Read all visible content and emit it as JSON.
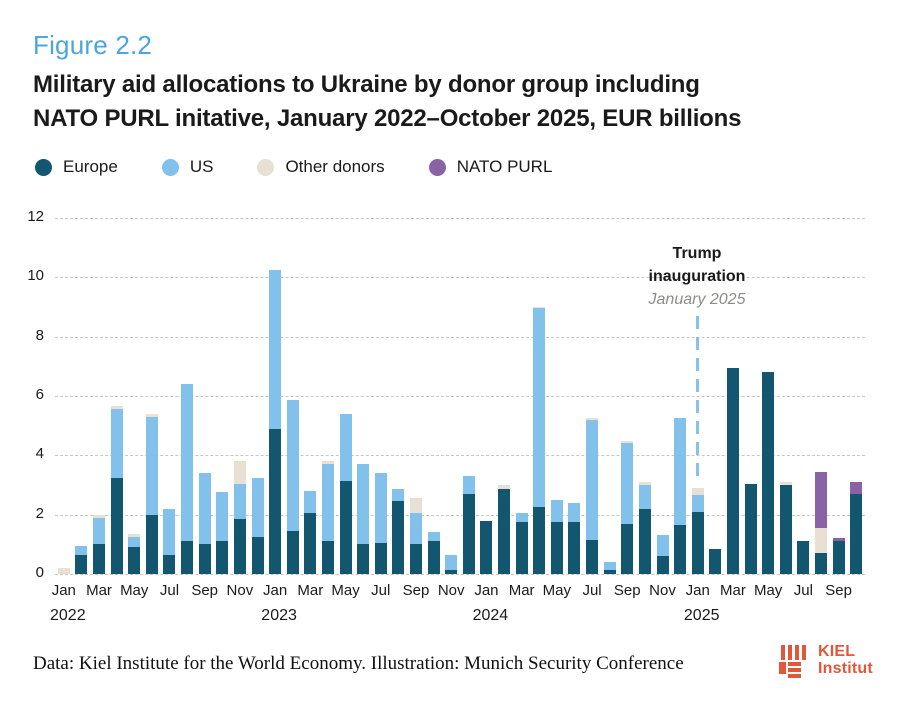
{
  "figure": {
    "label": "Figure 2.2",
    "title_line1": "Military aid allocations to Ukraine by donor group including",
    "title_line2": "NATO PURL initative, January 2022–October 2025, EUR billions"
  },
  "legend": [
    {
      "label": "Europe",
      "color": "#125670"
    },
    {
      "label": "US",
      "color": "#82C1EB"
    },
    {
      "label": "Other donors",
      "color": "#E7E0D3"
    },
    {
      "label": "NATO PURL",
      "color": "#8A63A4"
    }
  ],
  "annotation": {
    "line1": "Trump",
    "line2": "inauguration",
    "line3": "January 2025"
  },
  "footer": {
    "credit": "Data: Kiel Institute for the World Economy. Illustration: Munich Security Conference",
    "logo_line1": "KIEL",
    "logo_line2": "Institut"
  },
  "chart_data": {
    "type": "bar",
    "stacked": true,
    "title": "Military aid allocations to Ukraine by donor group including NATO PURL initative, January 2022–October 2025, EUR billions",
    "xlabel": "",
    "ylabel": "EUR billions",
    "ylim": [
      0,
      12
    ],
    "yticks": [
      0,
      2,
      4,
      6,
      8,
      10,
      12
    ],
    "grid": "dashed-horizontal",
    "legend_position": "top",
    "x_tick_every": 2,
    "x": [
      "Jan 2022",
      "Feb 2022",
      "Mar 2022",
      "Apr 2022",
      "May 2022",
      "Jun 2022",
      "Jul 2022",
      "Aug 2022",
      "Sep 2022",
      "Oct 2022",
      "Nov 2022",
      "Dec 2022",
      "Jan 2023",
      "Feb 2023",
      "Mar 2023",
      "Apr 2023",
      "May 2023",
      "Jun 2023",
      "Jul 2023",
      "Aug 2023",
      "Sep 2023",
      "Oct 2023",
      "Nov 2023",
      "Dec 2023",
      "Jan 2024",
      "Feb 2024",
      "Mar 2024",
      "Apr 2024",
      "May 2024",
      "Jun 2024",
      "Jul 2024",
      "Aug 2024",
      "Sep 2024",
      "Oct 2024",
      "Nov 2024",
      "Dec 2024",
      "Jan 2025",
      "Feb 2025",
      "Mar 2025",
      "Apr 2025",
      "May 2025",
      "Jun 2025",
      "Jul 2025",
      "Aug 2025",
      "Sep 2025",
      "Oct 2025"
    ],
    "year_labels": [
      {
        "index": 0,
        "label": "2022"
      },
      {
        "index": 12,
        "label": "2023"
      },
      {
        "index": 24,
        "label": "2024"
      },
      {
        "index": 36,
        "label": "2025"
      }
    ],
    "series": [
      {
        "name": "Europe",
        "color": "#125670",
        "values": [
          0,
          0.65,
          1.0,
          3.25,
          0.9,
          2.0,
          0.65,
          1.1,
          1.0,
          1.1,
          1.85,
          1.25,
          4.9,
          1.45,
          2.05,
          1.1,
          3.15,
          1.0,
          1.05,
          2.45,
          1.0,
          1.1,
          0.15,
          2.7,
          1.8,
          2.85,
          1.75,
          2.25,
          1.75,
          1.75,
          1.15,
          0.15,
          1.7,
          2.2,
          0.6,
          1.65,
          2.1,
          0.85,
          6.95,
          3.05,
          6.8,
          3.0,
          1.1,
          0.7,
          1.1,
          2.7
        ]
      },
      {
        "name": "US",
        "color": "#82C1EB",
        "values": [
          0,
          0.3,
          0.9,
          2.3,
          0.35,
          3.3,
          1.55,
          5.3,
          2.4,
          1.65,
          1.2,
          2.0,
          5.35,
          4.4,
          0.75,
          2.6,
          2.25,
          2.7,
          2.35,
          0.4,
          1.05,
          0.3,
          0.5,
          0.6,
          0,
          0,
          0.3,
          6.7,
          0.75,
          0.65,
          4.05,
          0.25,
          2.7,
          0.8,
          0.7,
          3.6,
          0.55,
          0,
          0,
          0,
          0,
          0,
          0,
          0,
          0,
          0
        ]
      },
      {
        "name": "Other donors",
        "color": "#E7E0D3",
        "values": [
          0.2,
          0,
          0.1,
          0.1,
          0.1,
          0.1,
          0,
          0,
          0,
          0,
          0.75,
          0,
          0,
          0,
          0,
          0.1,
          0,
          0,
          0,
          0,
          0.5,
          0,
          0,
          0,
          0,
          0.15,
          0,
          0.05,
          0,
          0,
          0.05,
          0,
          0.1,
          0.1,
          0,
          0,
          0.25,
          0,
          0,
          0,
          0,
          0.1,
          0,
          0.85,
          0,
          0
        ]
      },
      {
        "name": "NATO PURL",
        "color": "#8A63A4",
        "values": [
          0,
          0,
          0,
          0,
          0,
          0,
          0,
          0,
          0,
          0,
          0,
          0,
          0,
          0,
          0,
          0,
          0,
          0,
          0,
          0,
          0,
          0,
          0,
          0,
          0,
          0,
          0,
          0,
          0,
          0,
          0,
          0,
          0,
          0,
          0,
          0,
          0,
          0,
          0,
          0,
          0,
          0,
          0,
          1.9,
          0.1,
          0.4
        ]
      }
    ],
    "annotation": {
      "text": "Trump inauguration January 2025",
      "x_index": 36
    }
  }
}
